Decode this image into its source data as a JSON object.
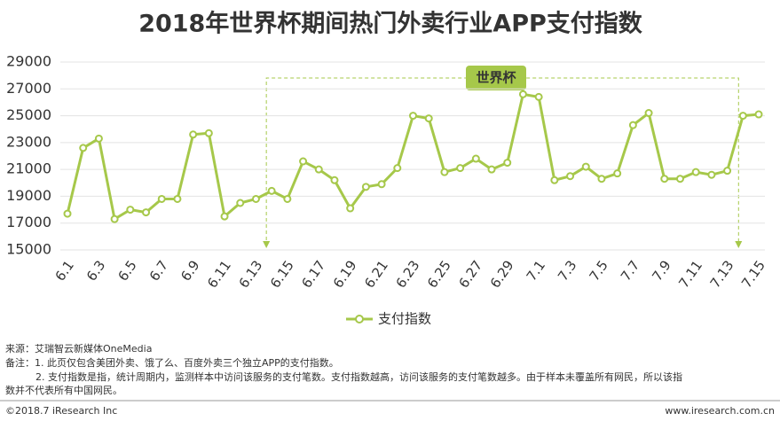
{
  "chart_data": {
    "type": "line",
    "title": "2018年世界杯期间热门外卖行业APP支付指数",
    "categories": [
      "6.1",
      null,
      "6.3",
      null,
      "6.5",
      null,
      "6.7",
      null,
      "6.9",
      null,
      "6.11",
      null,
      "6.13",
      null,
      "6.15",
      null,
      "6.17",
      null,
      "6.19",
      null,
      "6.21",
      null,
      "6.23",
      null,
      "6.25",
      null,
      "6.27",
      null,
      "6.29",
      null,
      "7.1",
      null,
      "7.3",
      null,
      "7.5",
      null,
      "7.7",
      null,
      "7.9",
      null,
      "7.11",
      null,
      "7.13",
      null,
      "7.15"
    ],
    "series": [
      {
        "name": "支付指数",
        "color": "#a6c84a",
        "values": [
          17700,
          22600,
          23300,
          17300,
          18000,
          17800,
          18800,
          18800,
          23600,
          23700,
          17500,
          18500,
          18800,
          19400,
          18800,
          21600,
          21000,
          20200,
          18100,
          19700,
          19900,
          21100,
          25000,
          24800,
          20800,
          21100,
          21800,
          21000,
          21500,
          26600,
          26400,
          20200,
          20500,
          21200,
          20300,
          20700,
          24300,
          25200,
          20300,
          20300,
          20800,
          20600,
          20900,
          25000,
          25100
        ]
      }
    ],
    "ylim": [
      15000,
      29000
    ],
    "yticks": [
      15000,
      17000,
      19000,
      21000,
      23000,
      25000,
      27000,
      29000
    ],
    "grid": true,
    "annotation": "世界杯",
    "legend": "bottom"
  },
  "notes": {
    "source": "来源：艾瑞智云新媒体OneMedia",
    "note1": "备注：1. 此页仅包含美团外卖、饿了么、百度外卖三个独立APP的支付指数。",
    "note2": "2. 支付指数是指，统计周期内，监测样本中访问该服务的支付笔数。支付指数越高，访问该服务的支付笔数越多。由于样本未覆盖所有网民，所以该指",
    "note3": "数并不代表所有中国网民。"
  },
  "footer": {
    "copyright": "©2018.7 iResearch Inc",
    "site": "www.iresearch.com.cn"
  }
}
